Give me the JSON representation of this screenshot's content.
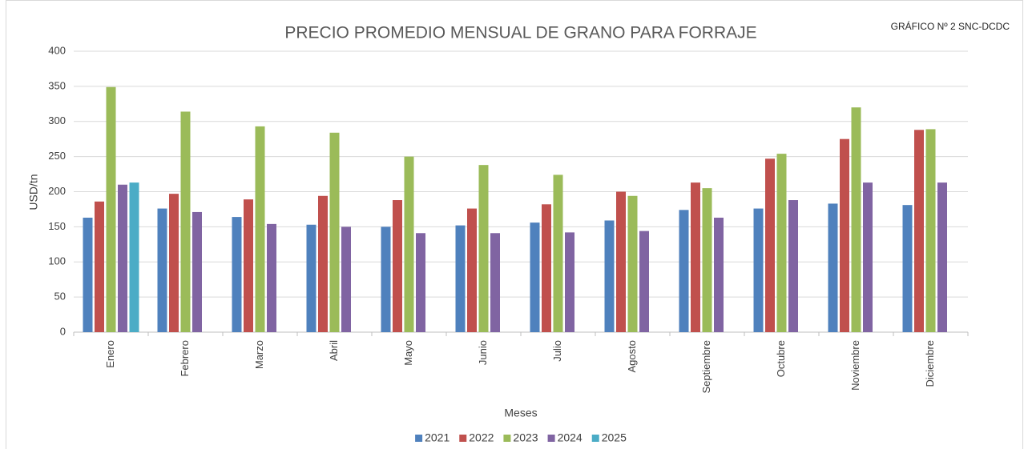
{
  "chart_data": {
    "type": "bar",
    "title": "PRECIO PROMEDIO MENSUAL DE GRANO PARA FORRAJE",
    "annotation": "GRÁFICO Nº 2 SNC-DCDC",
    "ylabel": "USD/tn",
    "xlabel": "Meses",
    "categories": [
      "Enero",
      "Febrero",
      "Marzo",
      "Abril",
      "Mayo",
      "Junio",
      "Julio",
      "Agosto",
      "Septiembre",
      "Octubre",
      "Noviembre",
      "Diciembre"
    ],
    "series": [
      {
        "name": "2021",
        "color": "#4f81bd",
        "values": [
          163,
          176,
          164,
          153,
          150,
          152,
          156,
          159,
          174,
          176,
          183,
          181
        ]
      },
      {
        "name": "2022",
        "color": "#c0504d",
        "values": [
          186,
          197,
          189,
          194,
          188,
          176,
          182,
          200,
          213,
          247,
          275,
          288
        ]
      },
      {
        "name": "2023",
        "color": "#9bbb59",
        "values": [
          349,
          314,
          293,
          284,
          250,
          238,
          224,
          194,
          205,
          254,
          320,
          289
        ]
      },
      {
        "name": "2024",
        "color": "#8064a2",
        "values": [
          210,
          171,
          154,
          150,
          141,
          141,
          142,
          144,
          163,
          188,
          213,
          213
        ]
      },
      {
        "name": "2025",
        "color": "#4bacc6",
        "values": [
          213,
          null,
          null,
          null,
          null,
          null,
          null,
          null,
          null,
          null,
          null,
          null
        ]
      }
    ],
    "ylim": [
      0,
      400
    ],
    "yticks": [
      0,
      50,
      100,
      150,
      200,
      250,
      300,
      350,
      400
    ],
    "grid": true,
    "legend": "bottom"
  }
}
